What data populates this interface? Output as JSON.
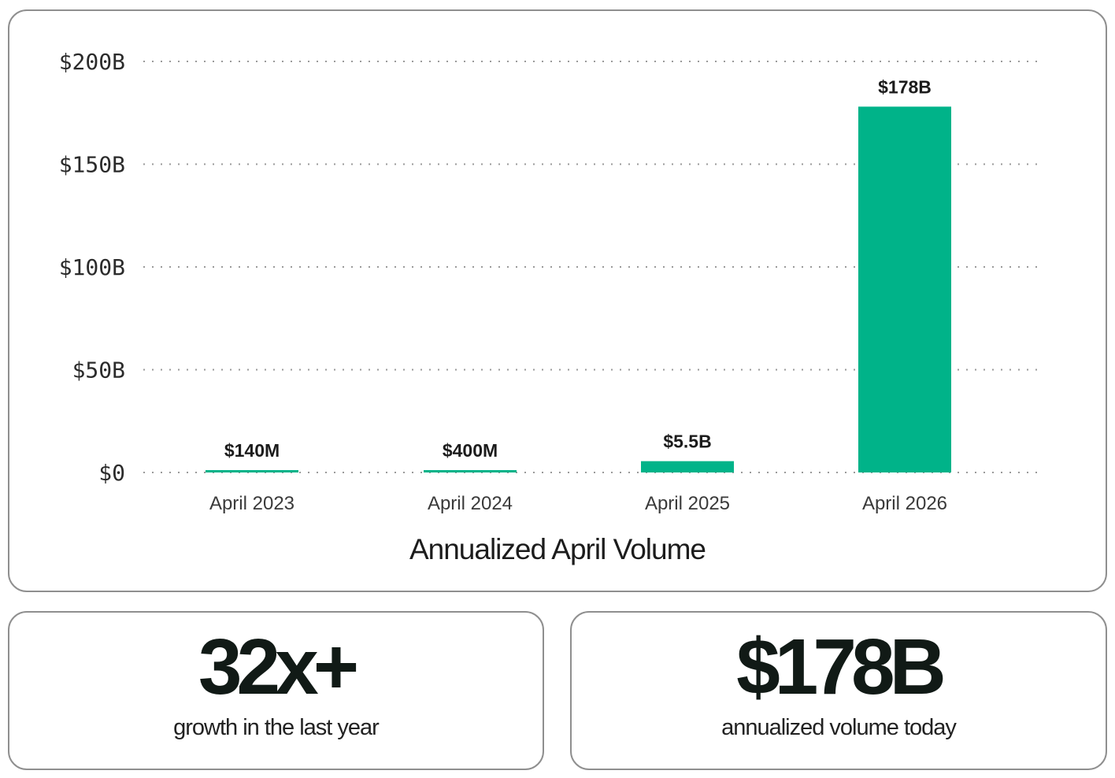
{
  "chart_data": {
    "type": "bar",
    "categories": [
      "April 2023",
      "April 2024",
      "April 2025",
      "April 2026"
    ],
    "values": [
      0.14,
      0.4,
      5.5,
      178
    ],
    "value_unit": "billions USD",
    "data_labels": [
      "$140M",
      "$400M",
      "$5.5B",
      "$178B"
    ],
    "title": "",
    "xlabel": "Annualized April Volume",
    "ylabel": "",
    "ylim": [
      0,
      200
    ],
    "yticks": [
      0,
      50,
      100,
      150,
      200
    ],
    "ytick_labels": [
      "$0",
      "$50B",
      "$100B",
      "$150B",
      "$200B"
    ],
    "grid": true,
    "grid_style": "dotted",
    "bar_color": "#00b389"
  },
  "stats": [
    {
      "value": "32x+",
      "caption": "growth in the last year"
    },
    {
      "value": "$178B",
      "caption": "annualized volume today"
    }
  ],
  "colors": {
    "bar": "#00b389",
    "grid": "#9a9a9a",
    "border": "#8f8f8f"
  }
}
